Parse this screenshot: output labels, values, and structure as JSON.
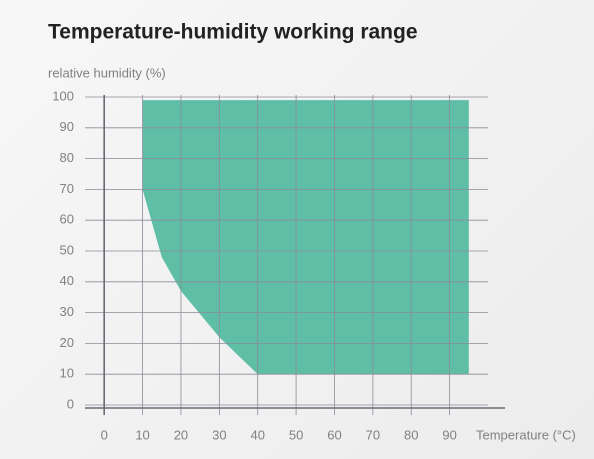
{
  "chart_data": {
    "type": "area",
    "title": "Temperature-humidity working range",
    "y_label": "relative humidity (%)",
    "x_label": "Temperature (°C)",
    "x": [
      10,
      95,
      95,
      40,
      30,
      20,
      15,
      10
    ],
    "values": [
      99,
      99,
      10,
      10,
      22,
      37,
      48,
      70
    ],
    "color": "#5fbea6",
    "xlim": [
      -5,
      100
    ],
    "xticks": [
      0,
      10,
      20,
      30,
      40,
      50,
      60,
      70,
      80,
      90
    ],
    "ylim": [
      0,
      100
    ],
    "yticks": [
      0,
      10,
      20,
      30,
      40,
      50,
      60,
      70,
      80,
      90,
      100
    ],
    "grid": true
  }
}
